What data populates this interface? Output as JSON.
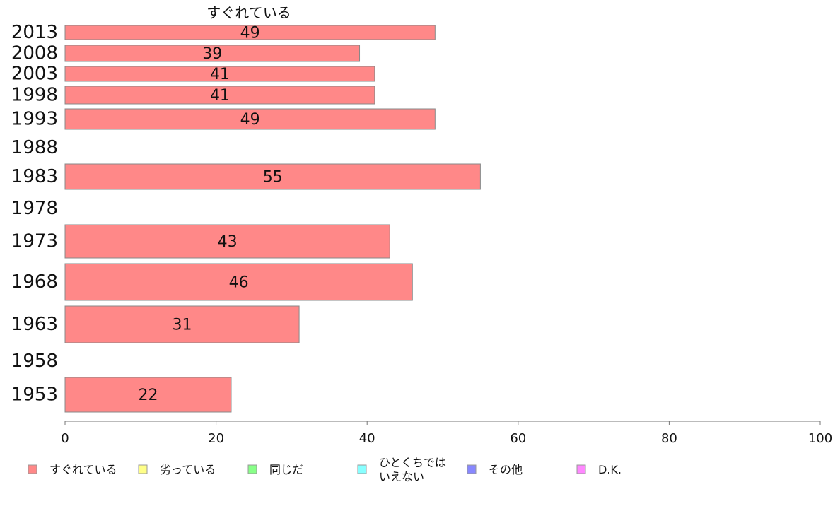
{
  "chart_data": {
    "type": "bar",
    "orientation": "horizontal",
    "title": "",
    "series": [
      {
        "name": "すぐれている",
        "color": "#ff8888",
        "values": [
          22,
          null,
          31,
          46,
          43,
          null,
          55,
          null,
          49,
          41,
          41,
          39,
          49
        ]
      }
    ],
    "categories": [
      "1953",
      "1958",
      "1963",
      "1968",
      "1973",
      "1978",
      "1983",
      "1988",
      "1993",
      "1998",
      "2003",
      "2008",
      "2013"
    ],
    "xlim": [
      0,
      100
    ],
    "xticks": [
      0,
      20,
      40,
      60,
      80,
      100
    ],
    "grid": false,
    "legend_position": "bottom",
    "legend": [
      {
        "label": "すぐれている",
        "color": "#ff8888"
      },
      {
        "label": "劣っている",
        "color": "#ffff88"
      },
      {
        "label": "同じだ",
        "color": "#88ff88"
      },
      {
        "label": "ひとくちでは\nいえない",
        "color": "#88ffff"
      },
      {
        "label": "その他",
        "color": "#8888ff"
      },
      {
        "label": "D.K.",
        "color": "#ff88ff"
      }
    ]
  }
}
